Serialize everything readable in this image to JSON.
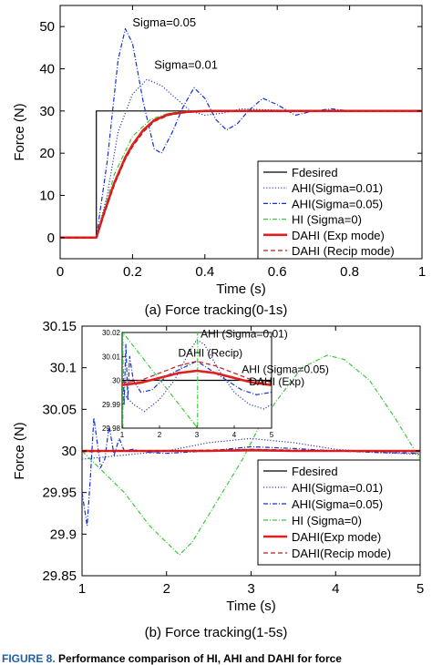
{
  "figure_caption": {
    "number": "FIGURE 8.",
    "text": "Performance comparison of HI, AHI and DAHI for force"
  },
  "chart_data": [
    {
      "type": "line",
      "title": "(a) Force tracking(0-1s)",
      "xlabel": "Time (s)",
      "ylabel": "Force (N)",
      "xlim": [
        0,
        1
      ],
      "ylim": [
        -5,
        55
      ],
      "xticks": [
        0,
        0.2,
        0.4,
        0.6,
        0.8,
        1
      ],
      "xtick_labels": [
        "0",
        "0.2",
        "0.4",
        "0.6",
        "0.8",
        "1"
      ],
      "yticks": [
        0,
        10,
        20,
        30,
        40,
        50
      ],
      "ytick_labels": [
        "0",
        "10",
        "20",
        "30",
        "40",
        "50"
      ],
      "grid": false,
      "legend_position": "bottom-right",
      "legend": [
        "Fdesired",
        "AHI(Sigma=0.01)",
        "AHI(Sigma=0.05)",
        "HI (Sigma=0)",
        "DAHI (Exp mode)",
        "DAHI (Recip mode)"
      ],
      "annotations": [
        {
          "text": "Sigma=0.05",
          "x": 0.2,
          "y": 50
        },
        {
          "text": "Sigma=0.01",
          "x": 0.26,
          "y": 40
        }
      ],
      "series": [
        {
          "name": "Fdesired",
          "color": "#000000",
          "style": "solid",
          "x": [
            0,
            0.1,
            0.1,
            1
          ],
          "y": [
            0,
            0,
            30,
            30
          ]
        },
        {
          "name": "AHI(Sigma=0.01)",
          "color": "#2b3fb0",
          "style": "dotted",
          "x": [
            0,
            0.1,
            0.13,
            0.16,
            0.2,
            0.24,
            0.28,
            0.32,
            0.36,
            0.4,
            0.45,
            0.5,
            0.6,
            0.7,
            0.8,
            1
          ],
          "y": [
            0,
            0,
            10,
            25,
            34,
            37.5,
            36,
            33,
            30,
            29,
            29.5,
            30.5,
            30.2,
            30,
            30,
            30
          ]
        },
        {
          "name": "AHI(Sigma=0.05)",
          "color": "#1030d8",
          "style": "dashdot",
          "x": [
            0,
            0.1,
            0.13,
            0.16,
            0.18,
            0.2,
            0.23,
            0.26,
            0.28,
            0.31,
            0.34,
            0.37,
            0.4,
            0.43,
            0.46,
            0.49,
            0.52,
            0.56,
            0.6,
            0.65,
            0.7,
            0.75,
            0.8,
            0.9,
            1
          ],
          "y": [
            0,
            0,
            18,
            42,
            49.5,
            46,
            32,
            21,
            20,
            25,
            31,
            35.5,
            33,
            28,
            25.5,
            27,
            30,
            33,
            31.5,
            29,
            30,
            30.5,
            30,
            30,
            30
          ]
        },
        {
          "name": "HI (Sigma=0)",
          "color": "#3cc83c",
          "style": "dashdot",
          "x": [
            0,
            0.1,
            0.15,
            0.2,
            0.25,
            0.3,
            0.35,
            0.4,
            0.5,
            1
          ],
          "y": [
            0,
            0,
            15,
            24,
            28,
            29.5,
            29.9,
            30,
            30,
            30
          ]
        },
        {
          "name": "DAHI (Exp mode)",
          "color": "#e02020",
          "style": "solid-thick",
          "x": [
            0,
            0.1,
            0.12,
            0.15,
            0.18,
            0.2,
            0.23,
            0.26,
            0.3,
            0.35,
            0.4,
            0.45,
            1
          ],
          "y": [
            0,
            0,
            5.5,
            13,
            19,
            22,
            25.5,
            27.8,
            29.2,
            29.8,
            30,
            30,
            30
          ]
        },
        {
          "name": "DAHI (Recip mode)",
          "color": "#c01818",
          "style": "dashed",
          "x": [
            0,
            0.1,
            0.12,
            0.15,
            0.18,
            0.2,
            0.23,
            0.26,
            0.3,
            0.35,
            0.4,
            0.45,
            1
          ],
          "y": [
            0,
            0,
            5,
            12.5,
            18.5,
            21.5,
            25,
            27.5,
            29,
            29.7,
            30,
            30,
            30
          ]
        }
      ]
    },
    {
      "type": "line",
      "title": "(b) Force tracking(1-5s)",
      "xlabel": "Time (s)",
      "ylabel": "Force (N)",
      "xlim": [
        1,
        5
      ],
      "ylim": [
        29.85,
        30.15
      ],
      "xticks": [
        1,
        2,
        3,
        4,
        5
      ],
      "xtick_labels": [
        "1",
        "2",
        "3",
        "4",
        "5"
      ],
      "yticks": [
        29.85,
        29.9,
        29.95,
        30,
        30.05,
        30.1,
        30.15
      ],
      "ytick_labels": [
        "29.85",
        "29.9",
        "29.95",
        "30",
        "30.05",
        "30.1",
        "30.15"
      ],
      "grid": false,
      "legend_position": "bottom-right",
      "legend": [
        "Fdesired",
        "AHI(Sigma=0.01)",
        "AHI(Sigma=0.05)",
        "HI (Sigma=0)",
        "DAHI(Exp mode)",
        "DAHI(Recip mode)"
      ],
      "series": [
        {
          "name": "Fdesired",
          "color": "#000000",
          "style": "solid",
          "x": [
            1,
            5
          ],
          "y": [
            30,
            30
          ]
        },
        {
          "name": "AHI(Sigma=0.01)",
          "color": "#2b3fb0",
          "style": "dotted",
          "x": [
            1,
            1.5,
            2,
            2.5,
            3,
            3.5,
            4,
            4.5,
            5
          ],
          "y": [
            29.99,
            29.995,
            30.0,
            30.01,
            30.015,
            30.01,
            30.002,
            29.998,
            29.996
          ]
        },
        {
          "name": "AHI(Sigma=0.05)",
          "color": "#1030d8",
          "style": "dashdot",
          "x": [
            1,
            1.03,
            1.06,
            1.1,
            1.14,
            1.18,
            1.22,
            1.27,
            1.32,
            1.38,
            1.44,
            1.5,
            1.6,
            1.8,
            2,
            2.5,
            3,
            3.5,
            4,
            4.5,
            5
          ],
          "y": [
            29.95,
            29.93,
            29.91,
            29.97,
            30.04,
            30.01,
            29.98,
            29.99,
            30.03,
            29.995,
            30.015,
            30.0,
            30.002,
            29.998,
            29.997,
            30.0,
            30.005,
            30.003,
            30.0,
            29.998,
            29.997
          ]
        },
        {
          "name": "HI (Sigma=0)",
          "color": "#3cc83c",
          "style": "dashdot",
          "x": [
            1,
            1.2,
            1.5,
            1.8,
            2,
            2.15,
            2.3,
            2.6,
            2.9,
            3.1,
            3.3,
            3.6,
            3.9,
            4.1,
            4.4,
            4.7,
            5
          ],
          "y": [
            30.0,
            29.98,
            29.95,
            29.91,
            29.89,
            29.875,
            29.89,
            29.94,
            29.99,
            30.03,
            30.06,
            30.1,
            30.115,
            30.11,
            30.085,
            30.04,
            29.99
          ]
        },
        {
          "name": "DAHI(Exp mode)",
          "color": "#e02020",
          "style": "solid-thick",
          "x": [
            1,
            1.5,
            2,
            2.5,
            3,
            3.5,
            4,
            4.5,
            5
          ],
          "y": [
            30.0,
            30.0,
            30.0,
            30.0,
            30.001,
            30.0,
            30.0,
            30.0,
            30.0
          ]
        },
        {
          "name": "DAHI(Recip mode)",
          "color": "#c01818",
          "style": "dashed",
          "x": [
            1,
            1.5,
            2,
            2.5,
            3,
            3.5,
            4,
            4.5,
            5
          ],
          "y": [
            29.999,
            30.0,
            30.0,
            30.001,
            30.002,
            30.001,
            30.0,
            29.999,
            29.999
          ]
        }
      ],
      "inset": {
        "xlim": [
          1,
          5
        ],
        "ylim": [
          29.98,
          30.02
        ],
        "xticks": [
          1,
          2,
          3,
          4,
          5
        ],
        "xtick_labels": [
          "1",
          "2",
          "3",
          "4",
          "5"
        ],
        "yticks": [
          29.98,
          29.99,
          30,
          30.01,
          30.02
        ],
        "ytick_labels": [
          "29.98",
          "29.99",
          "30",
          "30.01",
          "30.02"
        ],
        "annotations": [
          {
            "text": "AHI (Sigma=0.01)",
            "x": 3.1,
            "y": 30.018
          },
          {
            "text": "DAHI (Recip)",
            "x": 2.5,
            "y": 30.01
          },
          {
            "text": "AHI (Sigma=0.05)",
            "x": 4.2,
            "y": 30.003
          },
          {
            "text": "DAHI (Exp)",
            "x": 4.4,
            "y": 29.998
          }
        ],
        "series": [
          {
            "name": "Fdesired",
            "color": "#000000",
            "style": "solid",
            "x": [
              1,
              5
            ],
            "y": [
              30,
              30
            ]
          },
          {
            "name": "AHI(Sigma=0.01)",
            "color": "#2b3fb0",
            "style": "dotted",
            "x": [
              1,
              1.3,
              1.6,
              2,
              2.4,
              2.8,
              3,
              3.2,
              3.6,
              4,
              4.4,
              4.8,
              5
            ],
            "y": [
              29.995,
              29.99,
              29.987,
              29.992,
              30.0,
              30.012,
              30.017,
              30.015,
              30.004,
              29.995,
              29.99,
              29.988,
              29.99
            ]
          },
          {
            "name": "AHI(Sigma=0.05)",
            "color": "#1030d8",
            "style": "dashdot",
            "x": [
              1,
              1.05,
              1.1,
              1.15,
              1.2,
              1.3,
              1.5,
              1.8,
              2.2,
              2.6,
              3,
              3.4,
              3.8,
              4.2,
              4.6,
              5
            ],
            "y": [
              30.02,
              29.99,
              30.015,
              29.992,
              30.01,
              30.0,
              29.995,
              29.996,
              30.002,
              30.005,
              30.008,
              30.004,
              30.0,
              29.996,
              29.994,
              29.995
            ]
          },
          {
            "name": "HI (Sigma=0)",
            "color": "#3cc83c",
            "style": "dashdot",
            "x": [
              1.02,
              1.02,
              3.02,
              3.02
            ],
            "y": [
              29.98,
              30.02,
              29.98,
              30.02
            ]
          },
          {
            "name": "DAHI(Exp mode)",
            "color": "#e02020",
            "style": "solid-thick",
            "x": [
              1,
              1.5,
              2,
              2.5,
              3,
              3.5,
              4,
              4.5,
              5
            ],
            "y": [
              29.998,
              29.999,
              30.001,
              30.003,
              30.004,
              30.003,
              30.001,
              29.999,
              29.998
            ]
          },
          {
            "name": "DAHI(Recip mode)",
            "color": "#c01818",
            "style": "dashed",
            "x": [
              1,
              1.5,
              2,
              2.5,
              3,
              3.5,
              4,
              4.5,
              5
            ],
            "y": [
              29.999,
              30.0,
              30.003,
              30.006,
              30.008,
              30.006,
              30.003,
              30.0,
              29.999
            ]
          }
        ]
      }
    }
  ]
}
